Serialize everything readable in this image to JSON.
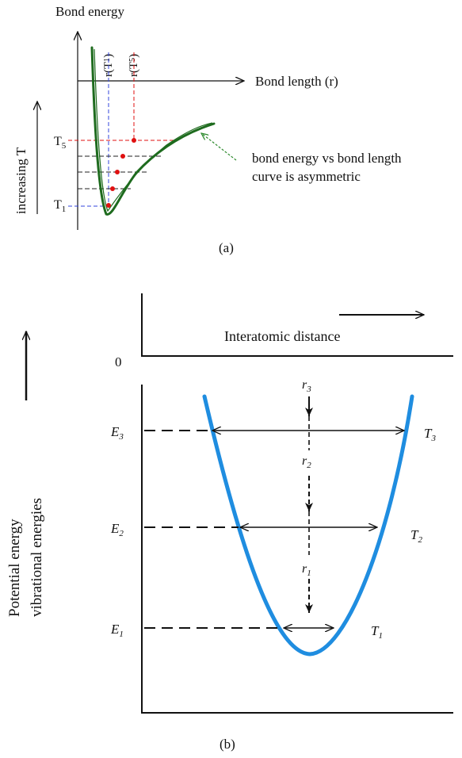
{
  "panel_a": {
    "y_axis_label": "Bond energy",
    "x_axis_label": "Bond length (r)",
    "temperature_arrow_label": "increasing T",
    "t5_label": "T",
    "t5_sub": "5",
    "t1_label": "T",
    "t1_sub": "1",
    "r_t1_label": "r(T",
    "r_t1_sub": "1",
    "r_t1_close": ")",
    "r_t5_label": "r(T",
    "r_t5_sub": "5",
    "r_t5_close": ")",
    "annotation_line1": "bond energy vs bond length",
    "annotation_line2": "curve is asymmetric",
    "caption": "(a)",
    "colors": {
      "curve": "#1e6b1e",
      "annotation_arrow": "#2e8b2e",
      "midpoints": "#e01010",
      "t1_guides": "#3344dd",
      "t5_guides": "#e01010",
      "levels": "#222222"
    }
  },
  "panel_b": {
    "zero_label": "0",
    "x_axis_label": "Interatomic distance",
    "y_axis_label_line1": "Potential energy",
    "y_axis_label_line2": "vibrational energies",
    "levels": [
      {
        "e": "E",
        "e_sub": "3",
        "t": "T",
        "t_sub": "3"
      },
      {
        "e": "E",
        "e_sub": "2",
        "t": "T",
        "t_sub": "2"
      },
      {
        "e": "E",
        "e_sub": "1",
        "t": "T",
        "t_sub": "1"
      }
    ],
    "r_labels": [
      {
        "r": "r",
        "sub": "3"
      },
      {
        "r": "r",
        "sub": "2"
      },
      {
        "r": "r",
        "sub": "1"
      }
    ],
    "caption": "(b)",
    "colors": {
      "well": "#1f8de0",
      "lines": "#111111"
    }
  }
}
